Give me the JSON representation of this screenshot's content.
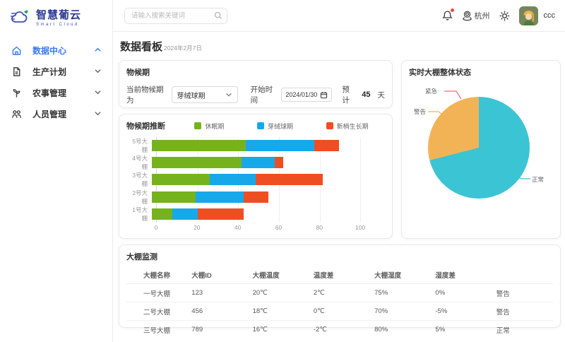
{
  "brand": {
    "name": "智慧葡云",
    "subtitle": "Smart Cloud"
  },
  "topbar": {
    "search_placeholder": "请输入搜索关键词",
    "location": "杭州",
    "username": "ccc"
  },
  "sidebar": {
    "items": [
      {
        "label": "数据中心",
        "active": true,
        "expanded": true
      },
      {
        "label": "生产计划",
        "active": false,
        "expanded": false
      },
      {
        "label": "农事管理",
        "active": false,
        "expanded": false
      },
      {
        "label": "人员管理",
        "active": false,
        "expanded": false
      }
    ]
  },
  "page": {
    "title": "数据看板",
    "date": "2024年2月7日"
  },
  "phenology_card": {
    "title": "物候期",
    "current_label": "当前物候期为",
    "current_value": "芽绒球期",
    "start_label": "开始时间",
    "start_date": "2024/01/30",
    "estimate_label": "预计",
    "estimate_days": "45",
    "estimate_unit": "天"
  },
  "chart_data": [
    {
      "type": "bar",
      "title": "物候期推断",
      "orientation": "horizontal",
      "stacked": true,
      "categories": [
        "5号大棚",
        "4号大棚",
        "3号大棚",
        "2号大棚",
        "1号大棚"
      ],
      "category_order": "top-to-bottom",
      "series": [
        {
          "name": "休眠期",
          "color": "#76b21e",
          "values": [
            45,
            43,
            28,
            21,
            10
          ]
        },
        {
          "name": "芽绒球期",
          "color": "#17a8ea",
          "values": [
            33,
            16,
            22,
            23,
            12
          ]
        },
        {
          "name": "新梢生长期",
          "color": "#ef4e22",
          "values": [
            12,
            4,
            32,
            12,
            22
          ]
        }
      ],
      "totals": [
        90,
        63,
        82,
        56,
        44
      ],
      "xlim": [
        0,
        110
      ],
      "xticks": [
        0,
        20,
        40,
        60,
        80,
        100
      ],
      "grid": true,
      "legend_position": "top"
    },
    {
      "type": "pie",
      "title": "实时大棚整体状态",
      "direction": "counterclockwise-from-top",
      "slices": [
        {
          "name": "紧急",
          "percent": 0,
          "color": "#f56c6c"
        },
        {
          "name": "警告",
          "percent": 29,
          "color": "#f2b357"
        },
        {
          "name": "正常",
          "percent": 71,
          "color": "#3bc4d4"
        }
      ]
    }
  ],
  "monitor_table": {
    "title": "大棚监测",
    "columns": [
      "大棚名称",
      "大棚ID",
      "大棚温度",
      "温度差",
      "大棚湿度",
      "湿度差",
      ""
    ],
    "rows": [
      [
        "一号大棚",
        "123",
        "20℃",
        "2℃",
        "75%",
        "0%",
        "警告"
      ],
      [
        "二号大棚",
        "456",
        "18℃",
        "0℃",
        "70%",
        "-5%",
        "警告"
      ],
      [
        "三号大棚",
        "789",
        "16℃",
        "-2℃",
        "80%",
        "5%",
        "正常"
      ]
    ]
  },
  "colors": {
    "accent_blue": "#3a7bf0",
    "brand_indigo": "#2b3a8f",
    "notification_red": "#f5483b"
  }
}
